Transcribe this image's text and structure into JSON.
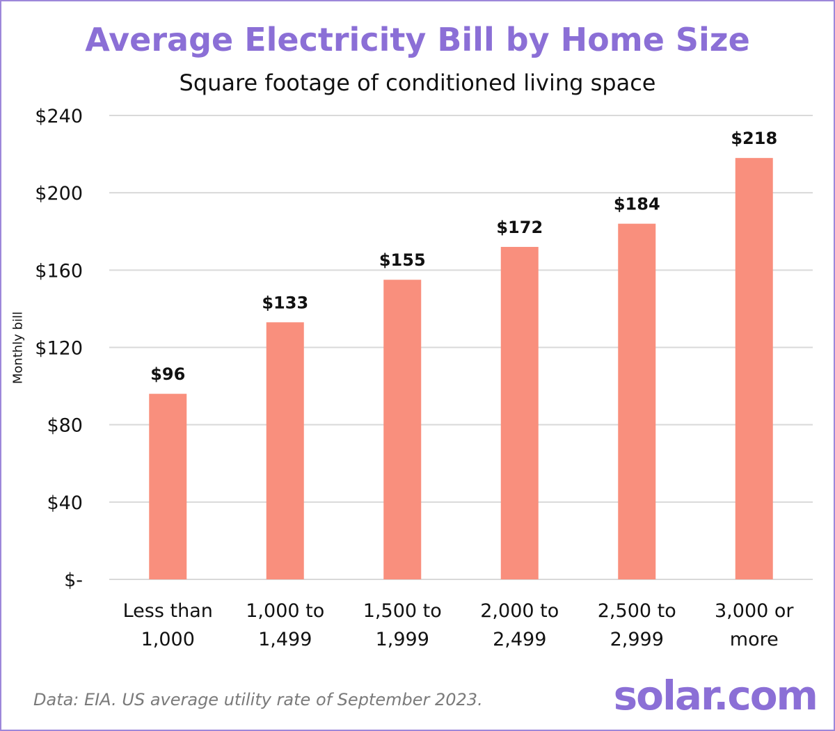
{
  "chart_data": {
    "type": "bar",
    "title": "Average Electricity Bill by Home Size",
    "subtitle": "Square footage of conditioned living space",
    "ylabel": "Monthly bill",
    "xlabel": "",
    "categories": [
      [
        "Less than",
        "1,000"
      ],
      [
        "1,000 to",
        "1,499"
      ],
      [
        "1,500 to",
        "1,999"
      ],
      [
        "2,000 to",
        "2,499"
      ],
      [
        "2,500 to",
        "2,999"
      ],
      [
        "3,000 or",
        "more"
      ]
    ],
    "values": [
      96,
      133,
      155,
      172,
      184,
      218
    ],
    "value_labels": [
      "$96",
      "$133",
      "$155",
      "$172",
      "$184",
      "$218"
    ],
    "ylim": [
      0,
      240
    ],
    "yticks": [
      0,
      40,
      80,
      120,
      160,
      200,
      240
    ],
    "ytick_labels": [
      "$-",
      "$40",
      "$80",
      "$120",
      "$160",
      "$200",
      "$240"
    ],
    "grid": true,
    "legend": "none",
    "bar_color": "#f98f7d",
    "grid_color": "#d9d9d9"
  },
  "footer": {
    "source": "Data: EIA. US average utility rate of September 2023.",
    "logo": "solar.com"
  },
  "colors": {
    "accent": "#8b6fd6",
    "border": "#9d87da"
  }
}
